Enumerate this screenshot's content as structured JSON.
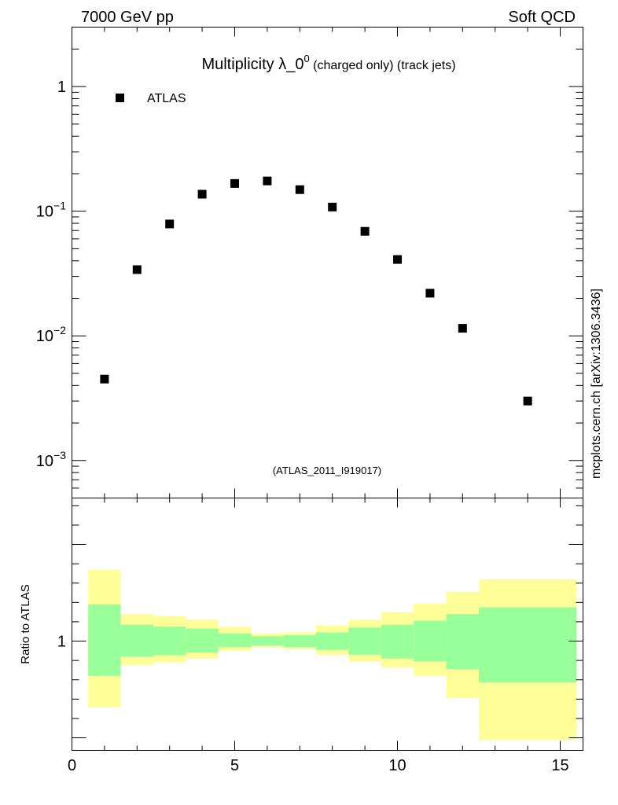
{
  "header": {
    "left": "7000 GeV pp",
    "right": "Soft QCD"
  },
  "title": {
    "main": "Multiplicity λ_0",
    "sup": "0",
    "sub": " (charged only) (track jets)"
  },
  "side_label": "mcplots.cern.ch [arXiv:1306.3436]",
  "analysis_label": "(ATLAS_2011_I919017)",
  "legend": {
    "label": "ATLAS"
  },
  "ratio_ylabel": "Ratio to ATLAS",
  "colors": {
    "band_inner": "#99ff99",
    "band_outer": "#ffff99",
    "marker": "#000000",
    "analysis_label": "#999999"
  },
  "chart_data": [
    {
      "type": "scatter",
      "yscale": "log",
      "xlim": [
        0,
        15.7
      ],
      "ylim": [
        0.0005,
        3.0
      ],
      "y_tick_labels": [
        "10^-3",
        "10^-2",
        "10^-1",
        "1"
      ],
      "series": [
        {
          "name": "ATLAS",
          "x": [
            1,
            2,
            3,
            4,
            5,
            6,
            7,
            8,
            9,
            10,
            11,
            12,
            14
          ],
          "y": [
            0.0045,
            0.034,
            0.079,
            0.137,
            0.167,
            0.175,
            0.149,
            0.108,
            0.069,
            0.041,
            0.022,
            0.0115,
            0.003
          ]
        }
      ]
    },
    {
      "type": "area",
      "ylabel": "Ratio to ATLAS",
      "xlim": [
        0,
        15.7
      ],
      "ylim": [
        0.435,
        1.74
      ],
      "x_tick_labels": [
        "0",
        "5",
        "10",
        "15"
      ],
      "y_tick_labels": [
        "1"
      ],
      "bands": [
        {
          "x0": 0.5,
          "x1": 1.5,
          "outer": [
            0.66,
            1.37
          ],
          "inner": [
            0.82,
            1.19
          ]
        },
        {
          "x0": 1.5,
          "x1": 2.5,
          "outer": [
            0.875,
            1.14
          ],
          "inner": [
            0.92,
            1.085
          ]
        },
        {
          "x0": 2.5,
          "x1": 3.5,
          "outer": [
            0.89,
            1.13
          ],
          "inner": [
            0.928,
            1.075
          ]
        },
        {
          "x0": 3.5,
          "x1": 4.5,
          "outer": [
            0.91,
            1.11
          ],
          "inner": [
            0.94,
            1.065
          ]
        },
        {
          "x0": 4.5,
          "x1": 5.5,
          "outer": [
            0.95,
            1.075
          ],
          "inner": [
            0.97,
            1.04
          ]
        },
        {
          "x0": 5.5,
          "x1": 6.5,
          "outer": [
            0.968,
            1.038
          ],
          "inner": [
            0.978,
            1.025
          ]
        },
        {
          "x0": 6.5,
          "x1": 7.5,
          "outer": [
            0.96,
            1.045
          ],
          "inner": [
            0.97,
            1.03
          ]
        },
        {
          "x0": 7.5,
          "x1": 8.5,
          "outer": [
            0.93,
            1.08
          ],
          "inner": [
            0.955,
            1.045
          ]
        },
        {
          "x0": 8.5,
          "x1": 9.5,
          "outer": [
            0.895,
            1.11
          ],
          "inner": [
            0.93,
            1.07
          ]
        },
        {
          "x0": 9.5,
          "x1": 10.5,
          "outer": [
            0.865,
            1.15
          ],
          "inner": [
            0.91,
            1.085
          ]
        },
        {
          "x0": 10.5,
          "x1": 11.5,
          "outer": [
            0.82,
            1.195
          ],
          "inner": [
            0.895,
            1.105
          ]
        },
        {
          "x0": 11.5,
          "x1": 12.5,
          "outer": [
            0.705,
            1.255
          ],
          "inner": [
            0.855,
            1.14
          ]
        },
        {
          "x0": 12.5,
          "x1": 15.5,
          "outer": [
            0.49,
            1.32
          ],
          "inner": [
            0.785,
            1.175
          ]
        }
      ]
    }
  ]
}
